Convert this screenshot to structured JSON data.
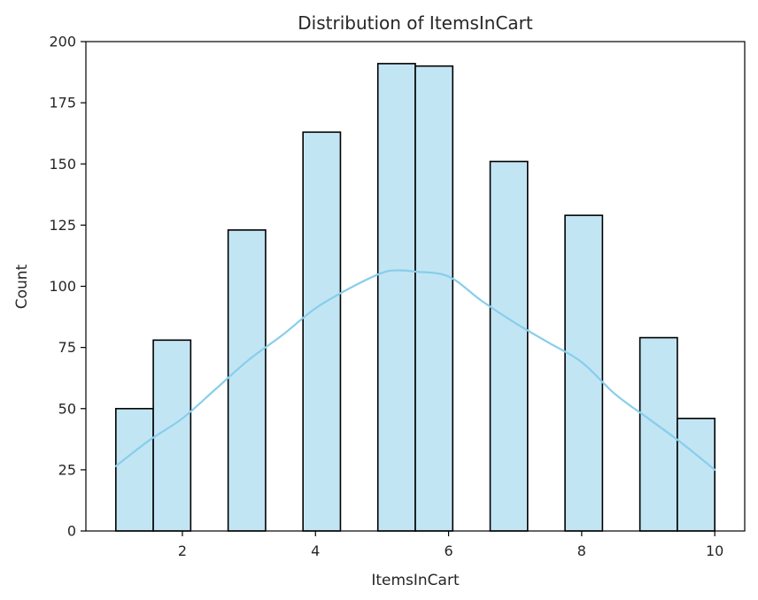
{
  "chart_data": {
    "type": "bar",
    "title": "Distribution of ItemsInCart",
    "xlabel": "ItemsInCart",
    "ylabel": "Count",
    "xlim": [
      0.55,
      10.45
    ],
    "ylim": [
      0,
      200
    ],
    "xticks": [
      2,
      4,
      6,
      8,
      10
    ],
    "yticks": [
      0,
      25,
      50,
      75,
      100,
      125,
      150,
      175,
      200
    ],
    "grid": false,
    "bin_width": 0.5625,
    "bins": [
      {
        "start": 1.0,
        "count": 50
      },
      {
        "start": 1.5625,
        "count": 78
      },
      {
        "start": 2.6875,
        "count": 123
      },
      {
        "start": 3.8125,
        "count": 163
      },
      {
        "start": 4.9375,
        "count": 191
      },
      {
        "start": 5.5,
        "count": 190
      },
      {
        "start": 6.625,
        "count": 151
      },
      {
        "start": 7.75,
        "count": 129
      },
      {
        "start": 8.875,
        "count": 79
      },
      {
        "start": 9.4375,
        "count": 46
      }
    ],
    "bar_color": "#c2e5f4",
    "bar_edge_color": "#000000",
    "kde": {
      "name": "",
      "color": "#87ceeb",
      "x": [
        1.0,
        1.5,
        2.0,
        2.5,
        3.0,
        3.5,
        4.0,
        4.5,
        5.0,
        5.25,
        5.5,
        6.0,
        6.5,
        7.0,
        7.5,
        8.0,
        8.5,
        9.0,
        9.5,
        10.0
      ],
      "y": [
        26.5,
        37,
        46,
        58,
        70,
        80,
        91,
        99,
        105.5,
        106.5,
        106,
        104,
        94,
        85,
        77,
        69,
        56,
        46,
        36,
        25
      ]
    }
  }
}
